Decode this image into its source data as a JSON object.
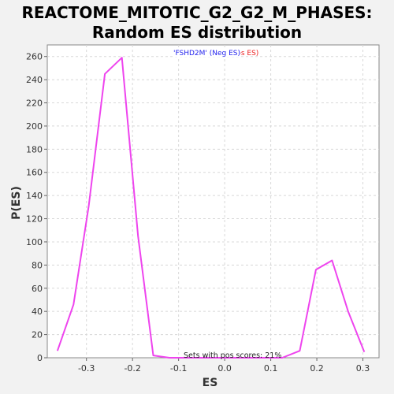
{
  "title_line1": "REACTOME_MITOTIC_G2_G2_M_PHASES:",
  "title_line2": "Random ES distribution",
  "colors": {
    "series": "#ee44ee",
    "legend_neg": "#2222ee",
    "legend_pos": "#ee2222",
    "grid": "#d8d8d8",
    "plot_bg": "#ffffff"
  },
  "chart_data": {
    "type": "line",
    "title": "REACTOME_MITOTIC_G2_G2_M_PHASES: Random ES distribution",
    "xlabel": "ES",
    "ylabel": "P(ES)",
    "xlim": [
      -0.385,
      0.335
    ],
    "ylim": [
      0,
      270
    ],
    "x_ticks": [
      -0.3,
      -0.2,
      -0.1,
      0.0,
      0.1,
      0.2,
      0.3
    ],
    "x_tick_labels": [
      "-0.3",
      "-0.2",
      "-0.1",
      "0.0",
      "0.1",
      "0.2",
      "0.3"
    ],
    "y_ticks": [
      0,
      20,
      40,
      60,
      80,
      100,
      120,
      140,
      160,
      180,
      200,
      220,
      240,
      260
    ],
    "y_tick_labels": [
      "0",
      "20",
      "40",
      "60",
      "80",
      "100",
      "120",
      "140",
      "160",
      "180",
      "200",
      "220",
      "240",
      "260"
    ],
    "grid": true,
    "series": [
      {
        "x": [
          -0.363,
          -0.328,
          -0.295,
          -0.26,
          -0.223,
          -0.188,
          -0.155,
          -0.12,
          -0.085,
          -0.05,
          -0.015,
          0.02,
          0.055,
          0.09,
          0.125,
          0.163,
          0.198,
          0.233,
          0.268,
          0.303
        ],
        "y": [
          6,
          46,
          131,
          245,
          259,
          105,
          2,
          0,
          0,
          0,
          0,
          0,
          0,
          0,
          0,
          6,
          76,
          84,
          40,
          5
        ]
      }
    ],
    "legend": {
      "neg_label": "'FSHD2M' (Neg ES)",
      "pos_label": "'FSHD2M' (Pos ES)",
      "placement": "top-center"
    },
    "annotation": "Sets with pos scores: 21%"
  }
}
